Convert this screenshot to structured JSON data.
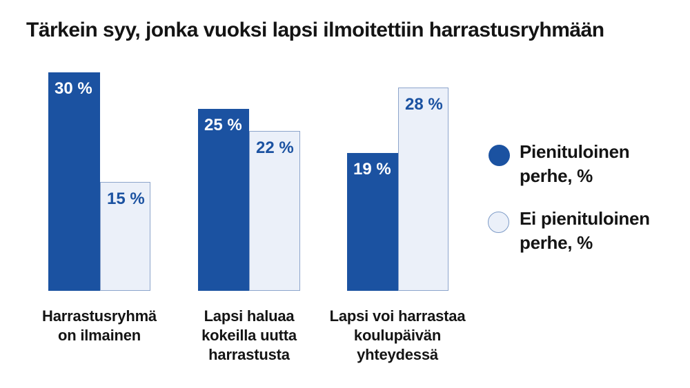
{
  "colors": {
    "series_dark_blue": "#1B52A1",
    "series_light_fill": "#EBF0F9",
    "series_light_border": "#8CA4CB",
    "text": "#141414",
    "value_label_on_dark": "#FFFFFF",
    "value_label_on_light": "#1B52A1",
    "background": "#FFFFFF"
  },
  "chart_data": {
    "type": "bar",
    "title": "Tärkein syy, jonka vuoksi lapsi ilmoitettiin harrastusryhmään",
    "categories": [
      "Harrastusryhmä on ilmainen",
      "Lapsi haluaa kokeilla uutta harrastusta",
      "Lapsi voi harrastaa koulupäivän yhteydessä"
    ],
    "category_labels": [
      "Harrastusryhmä\non ilmainen",
      "Lapsi haluaa\nkokeilla uutta\nharrastusta",
      "Lapsi voi harrastaa\nkoulupäivän\nyhteydessä"
    ],
    "series": [
      {
        "name": "Pienituloinen perhe, %",
        "values": [
          30,
          25,
          19
        ],
        "value_labels": [
          "30 %",
          "25 %",
          "19 %"
        ],
        "color": "#1B52A1",
        "style": "filled"
      },
      {
        "name": "Ei pienituloinen perhe, %",
        "values": [
          15,
          22,
          28
        ],
        "value_labels": [
          "15 %",
          "22 %",
          "28 %"
        ],
        "color": "#EBF0F9",
        "border_color": "#8CA4CB",
        "style": "outlined"
      }
    ],
    "xlabel": "",
    "ylabel": "",
    "ylim": [
      0,
      32
    ],
    "grid": false,
    "axes_shown": false,
    "value_label_format": "{value} %",
    "legend_position": "right",
    "legend": [
      {
        "label": "Pienituloinen perhe, %",
        "label_multiline": "Pienituloinen\nperhe, %",
        "swatch": "filled-circle"
      },
      {
        "label": "Ei pienituloinen perhe, %",
        "label_multiline": "Ei pienituloinen\nperhe, %",
        "swatch": "outlined-circle"
      }
    ]
  }
}
